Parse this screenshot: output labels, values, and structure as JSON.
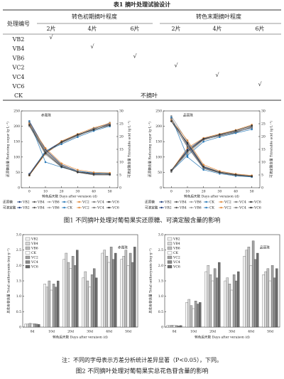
{
  "table": {
    "title": "表1  摘叶处理试验设计",
    "header": {
      "id": "处理编号",
      "early": "转色初期摘叶程度",
      "late": "转色末期摘叶程度",
      "sub": [
        "2片",
        "4片",
        "6片",
        "2片",
        "4片",
        "6片"
      ]
    },
    "rows": [
      {
        "name": "VB2",
        "cells": [
          "√",
          null,
          null,
          null,
          null,
          null
        ]
      },
      {
        "name": "VB4",
        "cells": [
          null,
          "√",
          null,
          null,
          null,
          null
        ]
      },
      {
        "name": "VB6",
        "cells": [
          null,
          null,
          "√",
          null,
          null,
          null
        ]
      },
      {
        "name": "VC2",
        "cells": [
          null,
          null,
          null,
          "√",
          null,
          null
        ]
      },
      {
        "name": "VC4",
        "cells": [
          null,
          null,
          null,
          null,
          "√",
          null
        ]
      },
      {
        "name": "VC6",
        "cells": [
          null,
          null,
          null,
          null,
          null,
          "√"
        ]
      },
      {
        "name": "CK",
        "note": "不摘叶"
      }
    ]
  },
  "figure1_caption": "图1  不同摘叶处理对葡萄果实还原糖、可滴定酸含量的影响",
  "figure2_note": "注：不同的字母表示方差分析统计差异显著（P<0.05），下同。",
  "figure2_caption": "图2  不同摘叶处理对葡萄果实总花色苷含量的影响",
  "chart_data": [
    {
      "type": "line",
      "title": "赤霞珠",
      "xlabel": "转色后天数 Days after veraison (d)",
      "ylabel": "还原糖含量 Reducing sugar (g·L⁻¹)",
      "y2label": "可滴定酸含量 Titratable acid (g·L⁻¹)",
      "legend_groups": [
        "还原糖",
        "可滴定酸"
      ],
      "x": [
        0,
        10,
        20,
        30,
        40,
        50
      ],
      "xlim": [
        -5,
        55
      ],
      "xticks": [
        0,
        10,
        20,
        30,
        40,
        50
      ],
      "ylim": [
        0,
        250
      ],
      "yticks": [
        0,
        50,
        100,
        150,
        200,
        250
      ],
      "y2lim": [
        0,
        30
      ],
      "y2ticks": [
        0,
        5,
        10,
        15,
        20,
        25,
        30
      ],
      "series": [
        {
          "name": "VB2",
          "color": "#1f3d7a",
          "values": [
            45,
            118,
            150,
            172,
            192,
            208
          ]
        },
        {
          "name": "VB4",
          "color": "#555555",
          "values": [
            40,
            115,
            148,
            170,
            188,
            205
          ]
        },
        {
          "name": "VB6",
          "color": "#999999",
          "values": [
            42,
            112,
            145,
            168,
            190,
            212
          ]
        },
        {
          "name": "CK",
          "color": "#2a7ab8",
          "values": [
            40,
            120,
            142,
            165,
            185,
            200
          ]
        },
        {
          "name": "VC2",
          "color": "#e08a3c",
          "values": [
            40,
            110,
            152,
            175,
            195,
            210
          ]
        },
        {
          "name": "VC4",
          "color": "#777777",
          "values": [
            43,
            116,
            147,
            171,
            193,
            206
          ]
        },
        {
          "name": "VC6",
          "color": "#333333",
          "values": [
            41,
            114,
            149,
            173,
            189,
            203
          ]
        },
        {
          "name": "VB2",
          "color": "#1f3d7a",
          "axis": "y2",
          "values": [
            26,
            15,
            9,
            6.5,
            5.5,
            5.2
          ]
        },
        {
          "name": "VB4",
          "color": "#555555",
          "axis": "y2",
          "values": [
            25,
            14,
            8.5,
            6,
            5,
            5
          ]
        },
        {
          "name": "VB6",
          "color": "#999999",
          "axis": "y2",
          "values": [
            24,
            13,
            8,
            6.2,
            5.2,
            5.5
          ]
        },
        {
          "name": "CK",
          "color": "#2a7ab8",
          "axis": "y2",
          "values": [
            26,
            10,
            8,
            6.5,
            5.8,
            5.6
          ]
        },
        {
          "name": "VC2",
          "color": "#e08a3c",
          "axis": "y2",
          "values": [
            25,
            15.5,
            9.5,
            7,
            6,
            5.8
          ]
        },
        {
          "name": "VC4",
          "color": "#777777",
          "axis": "y2",
          "values": [
            25.5,
            14.5,
            8.8,
            6.4,
            5.3,
            5.1
          ]
        },
        {
          "name": "VC6",
          "color": "#333333",
          "axis": "y2",
          "values": [
            24.5,
            13.5,
            8.2,
            6.1,
            5.4,
            5.3
          ]
        }
      ]
    },
    {
      "type": "line",
      "title": "品丽珠",
      "xlabel": "转色后天数 Days after veraison (d)",
      "ylabel": "还原糖含量 Reducing sugar (g·L⁻¹)",
      "y2label": "可滴定酸含量 Titratable acid (g·L⁻¹)",
      "legend_groups": [
        "还原糖",
        "可滴定酸"
      ],
      "x": [
        0,
        10,
        20,
        30,
        40,
        50
      ],
      "xlim": [
        -5,
        55
      ],
      "xticks": [
        0,
        10,
        20,
        30,
        40,
        50
      ],
      "ylim": [
        0,
        250
      ],
      "yticks": [
        0,
        50,
        100,
        150,
        200,
        250
      ],
      "y2lim": [
        0,
        30
      ],
      "y2ticks": [
        0,
        5,
        10,
        15,
        20,
        25,
        30
      ],
      "series": [
        {
          "name": "VB2",
          "color": "#1f3d7a",
          "values": [
            55,
            125,
            160,
            172,
            182,
            195
          ]
        },
        {
          "name": "VB4",
          "color": "#555555",
          "values": [
            52,
            118,
            158,
            168,
            180,
            198
          ]
        },
        {
          "name": "VB6",
          "color": "#999999",
          "values": [
            58,
            110,
            155,
            170,
            185,
            200
          ]
        },
        {
          "name": "CK",
          "color": "#2a7ab8",
          "values": [
            54,
            105,
            150,
            165,
            178,
            190
          ]
        },
        {
          "name": "VC2",
          "color": "#e08a3c",
          "values": [
            56,
            130,
            162,
            175,
            188,
            205
          ]
        },
        {
          "name": "VC4",
          "color": "#777777",
          "values": [
            53,
            115,
            157,
            170,
            183,
            196
          ]
        },
        {
          "name": "VC6",
          "color": "#333333",
          "values": [
            57,
            120,
            159,
            173,
            186,
            202
          ]
        },
        {
          "name": "VB2",
          "color": "#1f3d7a",
          "axis": "y2",
          "values": [
            27,
            17,
            8,
            6,
            5,
            4.5
          ]
        },
        {
          "name": "VB4",
          "color": "#555555",
          "axis": "y2",
          "values": [
            26,
            16,
            7.5,
            5.8,
            4.8,
            4.3
          ]
        },
        {
          "name": "VB6",
          "color": "#999999",
          "axis": "y2",
          "values": [
            28,
            18,
            8.5,
            6.2,
            5.2,
            4.6
          ]
        },
        {
          "name": "CK",
          "color": "#2a7ab8",
          "axis": "y2",
          "values": [
            27.5,
            12,
            7,
            5.5,
            4.6,
            4.2
          ]
        },
        {
          "name": "VC2",
          "color": "#e08a3c",
          "axis": "y2",
          "values": [
            26.5,
            18.5,
            9,
            6.5,
            5.4,
            4.8
          ]
        },
        {
          "name": "VC4",
          "color": "#777777",
          "axis": "y2",
          "values": [
            27,
            16.5,
            7.8,
            5.9,
            4.9,
            4.4
          ]
        },
        {
          "name": "VC6",
          "color": "#333333",
          "axis": "y2",
          "values": [
            26,
            17.5,
            8.2,
            6.1,
            5.1,
            4.5
          ]
        }
      ]
    },
    {
      "type": "bar",
      "title": "赤霞珠",
      "xlabel": "转色后天数 Days after veraison (d)",
      "ylabel": "总花色苷含量 Total anthocyanin (mg·g⁻¹)",
      "categories": [
        "0d",
        "10d",
        "20d",
        "30d",
        "40d",
        "50d"
      ],
      "ylim": [
        0,
        3
      ],
      "yticks": [
        0,
        0.5,
        {
          "value": 1,
          "label": "1.0"
        },
        1.5,
        {
          "value": 2,
          "label": "2.0"
        },
        2.5,
        {
          "value": 3,
          "label": "3.0"
        }
      ],
      "series": [
        {
          "name": "VB2",
          "color": "#f4f4f4",
          "values": [
            0.1,
            1.4,
            2.2,
            1.6,
            2.4,
            2.2
          ]
        },
        {
          "name": "VB4",
          "color": "#d8d8d8",
          "values": [
            0.1,
            1.3,
            2.4,
            1.8,
            2.5,
            2.3
          ]
        },
        {
          "name": "VB6",
          "color": "#bdbdbd",
          "values": [
            0.12,
            1.5,
            2.1,
            1.5,
            2.3,
            2.5
          ]
        },
        {
          "name": "CK",
          "color": "#ffffff",
          "values": [
            0.1,
            1.2,
            1.9,
            1.3,
            2.1,
            2.0
          ]
        },
        {
          "name": "VC2",
          "color": "#a3a3a3",
          "values": [
            0.11,
            1.4,
            2.3,
            1.7,
            2.6,
            2.4
          ]
        },
        {
          "name": "VC4",
          "color": "#8a8a8a",
          "values": [
            0.1,
            1.3,
            2.0,
            1.9,
            2.2,
            2.1
          ]
        },
        {
          "name": "VC6",
          "color": "#6e6e6e",
          "values": [
            0.09,
            1.5,
            2.5,
            1.6,
            2.4,
            2.6
          ]
        }
      ]
    },
    {
      "type": "bar",
      "title": "品丽珠",
      "xlabel": "转色后天数 Days after veraison (d)",
      "ylabel": "总花色苷含量 Total anthocyanin (mg·g⁻¹)",
      "categories": [
        "0d",
        "10d",
        "20d",
        "30d",
        "40d",
        "50d"
      ],
      "ylim": [
        0,
        3
      ],
      "yticks": [
        0,
        0.5,
        {
          "value": 1,
          "label": "1.0"
        },
        1.5,
        {
          "value": 2,
          "label": "2.0"
        },
        2.5,
        {
          "value": 3,
          "label": "3.0"
        }
      ],
      "series": [
        {
          "name": "VB2",
          "color": "#f4f4f4",
          "values": [
            0.05,
            0.8,
            1.8,
            1.5,
            2.3,
            1.7
          ]
        },
        {
          "name": "VB4",
          "color": "#d8d8d8",
          "values": [
            0.05,
            0.9,
            2.0,
            1.6,
            2.5,
            1.8
          ]
        },
        {
          "name": "VB6",
          "color": "#bdbdbd",
          "values": [
            0.06,
            0.7,
            1.7,
            1.4,
            2.6,
            1.9
          ]
        },
        {
          "name": "CK",
          "color": "#ffffff",
          "values": [
            0.05,
            0.6,
            1.5,
            1.2,
            2.0,
            1.5
          ]
        },
        {
          "name": "VC2",
          "color": "#a3a3a3",
          "values": [
            0.05,
            0.85,
            1.9,
            1.7,
            2.8,
            2.0
          ]
        },
        {
          "name": "VC4",
          "color": "#8a8a8a",
          "values": [
            0.04,
            0.75,
            1.6,
            1.5,
            2.2,
            1.6
          ]
        },
        {
          "name": "VC6",
          "color": "#6e6e6e",
          "values": [
            0.05,
            0.8,
            2.1,
            1.8,
            2.4,
            1.9
          ]
        }
      ]
    }
  ]
}
